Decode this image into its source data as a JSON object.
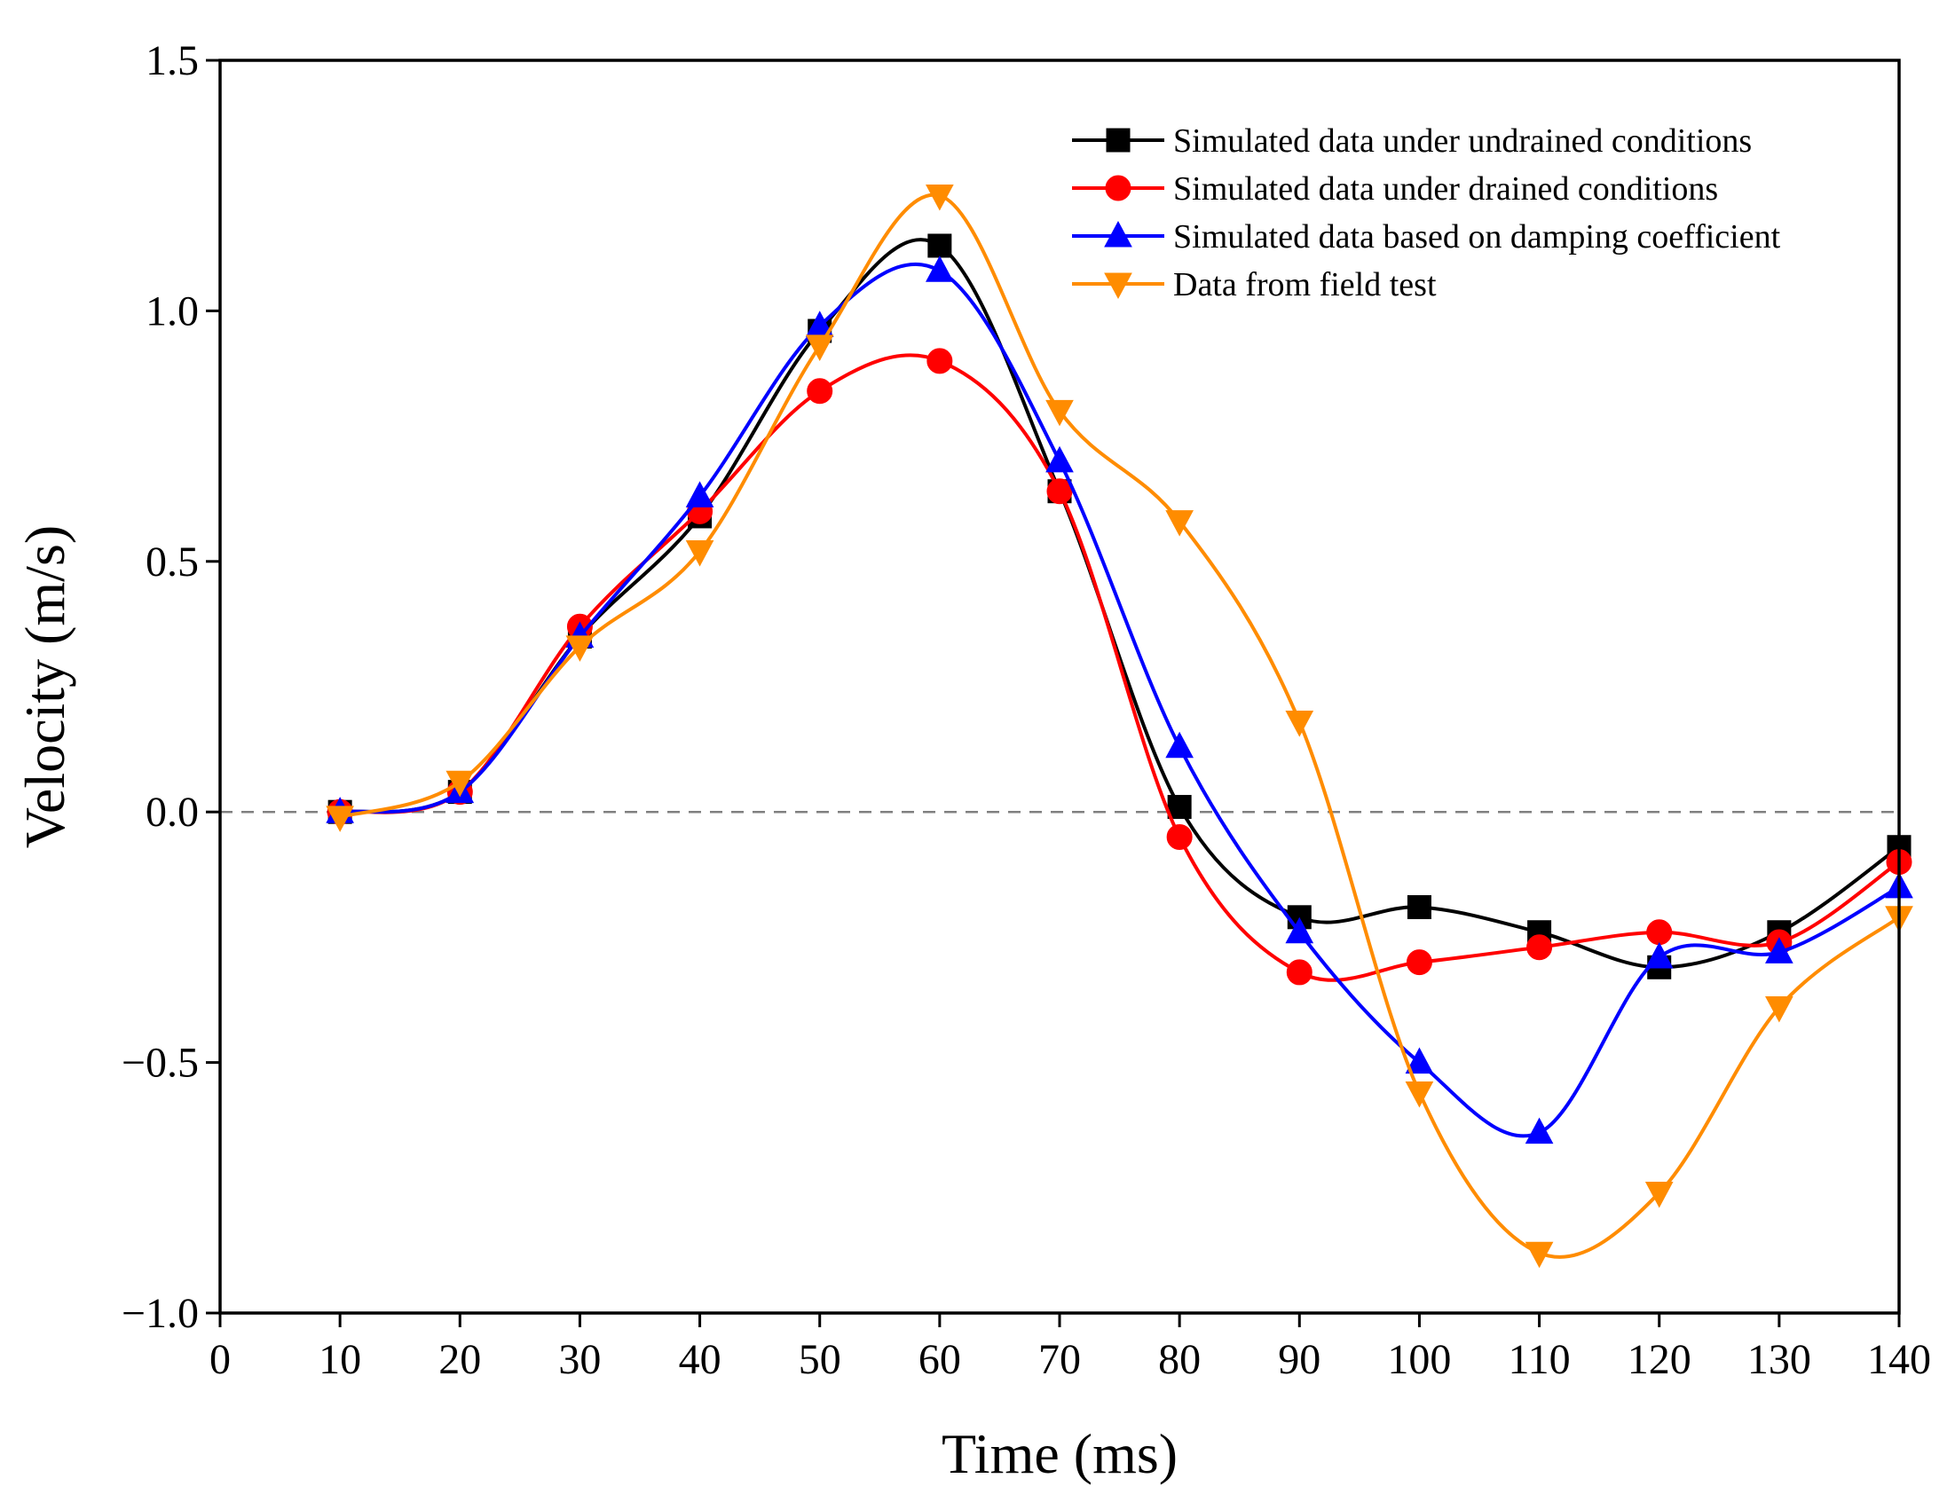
{
  "chart_data": {
    "type": "line",
    "title": "",
    "xlabel": "Time (ms)",
    "ylabel": "Velocity (m/s)",
    "xlim": [
      0,
      140
    ],
    "ylim": [
      -1.0,
      1.5
    ],
    "x_ticks": [
      0,
      10,
      20,
      30,
      40,
      50,
      60,
      70,
      80,
      90,
      100,
      110,
      120,
      130,
      140
    ],
    "y_ticks": [
      -1.0,
      -0.5,
      0.0,
      0.5,
      1.0,
      1.5
    ],
    "x_tick_labels": [
      "0",
      "10",
      "20",
      "30",
      "40",
      "50",
      "60",
      "70",
      "80",
      "90",
      "100",
      "110",
      "120",
      "130",
      "140"
    ],
    "y_tick_labels": [
      "−1.0",
      "−0.5",
      "0.0",
      "0.5",
      "1.0",
      "1.5"
    ],
    "reference_line": 0.0,
    "grid": false,
    "legend_position": "top-right",
    "x": [
      10,
      20,
      30,
      40,
      50,
      60,
      70,
      80,
      90,
      100,
      110,
      120,
      130,
      140
    ],
    "series": [
      {
        "name": "Simulated data under undrained conditions",
        "color": "#000000",
        "marker": "square",
        "values": [
          0.0,
          0.04,
          0.35,
          0.59,
          0.96,
          1.13,
          0.64,
          0.01,
          -0.21,
          -0.19,
          -0.24,
          -0.31,
          -0.24,
          -0.07
        ]
      },
      {
        "name": "Simulated data under drained conditions",
        "color": "#ff0000",
        "marker": "circle",
        "values": [
          0.0,
          0.04,
          0.37,
          0.6,
          0.84,
          0.9,
          0.64,
          -0.05,
          -0.32,
          -0.3,
          -0.27,
          -0.24,
          -0.26,
          -0.1
        ]
      },
      {
        "name": "Simulated data based on damping coefficient",
        "color": "#0000ff",
        "marker": "triangle-up",
        "values": [
          0.0,
          0.04,
          0.35,
          0.63,
          0.97,
          1.08,
          0.7,
          0.13,
          -0.24,
          -0.5,
          -0.64,
          -0.29,
          -0.28,
          -0.15
        ]
      },
      {
        "name": "Data from field test",
        "color": "#ff8c00",
        "marker": "triangle-down",
        "values": [
          -0.01,
          0.06,
          0.33,
          0.52,
          0.93,
          1.23,
          0.8,
          0.58,
          0.18,
          -0.56,
          -0.88,
          -0.76,
          -0.39,
          -0.21
        ]
      }
    ]
  }
}
